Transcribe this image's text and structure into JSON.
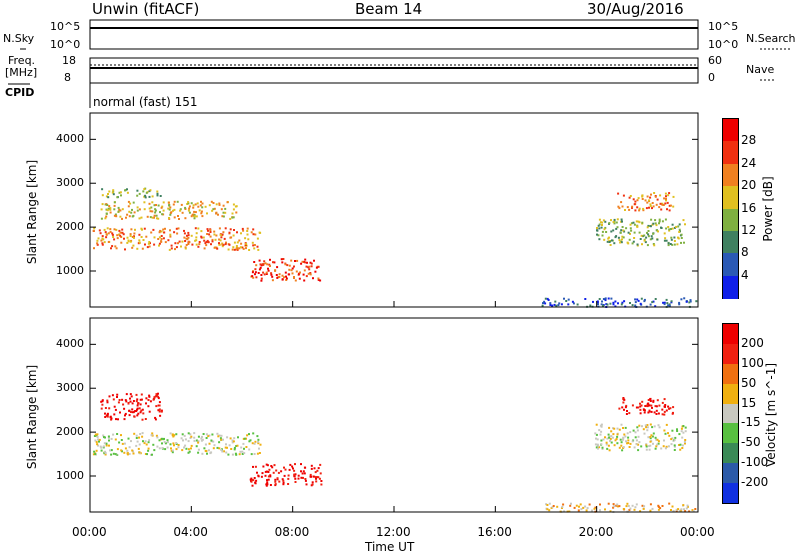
{
  "header": {
    "radar": "Unwin (fitACF)",
    "beam": "Beam 14",
    "date": "30/Aug/2016"
  },
  "top_panels": {
    "nsky_label": "N.Sky",
    "nsky_ticks": [
      "10^5",
      "10^0"
    ],
    "nsearch_label": "N.Search",
    "nsearch_ticks": [
      "10^5",
      "10^0"
    ],
    "freq_label": "Freq.",
    "freq_unit": "[MHz]",
    "freq_ticks": [
      "18",
      "8"
    ],
    "nave_label": "Nave",
    "nave_ticks": [
      "60",
      "0"
    ],
    "cpid_label": "CPID",
    "cpid_value": "normal (fast) 151"
  },
  "chart_data": {
    "type": "heatmap",
    "xlabel": "Time UT",
    "x_ticks": [
      "00:00",
      "04:00",
      "08:00",
      "12:00",
      "16:00",
      "20:00",
      "00:00"
    ],
    "xlim_hours": [
      0,
      24
    ],
    "ylabel": "Slant Range [km]",
    "ylim_km": [
      180,
      4600
    ],
    "y_ticks": [
      "1000",
      "2000",
      "3000",
      "4000"
    ],
    "panels": [
      {
        "name": "power",
        "colorbar_label": "Power [dB]",
        "colorbar_ticks": [
          "4",
          "8",
          "12",
          "16",
          "20",
          "24",
          "28"
        ],
        "colors": [
          "#0f1fe8",
          "#2a59b5",
          "#3f8060",
          "#7fb040",
          "#e0c020",
          "#f08020",
          "#f03010",
          "#ee0000"
        ],
        "regions": [
          {
            "t": [
              0.1,
              6.7
            ],
            "r": [
              1500,
              2000
            ],
            "level": 5
          },
          {
            "t": [
              0.4,
              5.8
            ],
            "r": [
              2200,
              2600
            ],
            "level": 4
          },
          {
            "t": [
              0.4,
              2.8
            ],
            "r": [
              2700,
              2900
            ],
            "level": 3
          },
          {
            "t": [
              6.3,
              9.1
            ],
            "r": [
              800,
              1300
            ],
            "level": 6
          },
          {
            "t": [
              19.9,
              23.5
            ],
            "r": [
              1600,
              2200
            ],
            "level": 3
          },
          {
            "t": [
              20.8,
              23.0
            ],
            "r": [
              2400,
              2800
            ],
            "level": 5
          },
          {
            "t": [
              17.8,
              23.9
            ],
            "r": [
              200,
              400
            ],
            "level": 1
          }
        ]
      },
      {
        "name": "velocity",
        "colorbar_label": "Velocity [m s^-1]",
        "colorbar_ticks": [
          "200",
          "100",
          "50",
          "15",
          "-15",
          "-50",
          "-100",
          "-200"
        ],
        "colors": [
          "#1030e0",
          "#2b5aa8",
          "#3a8a56",
          "#58c040",
          "#c8c8c0",
          "#f0b010",
          "#f07010",
          "#f02010",
          "#ee0000"
        ],
        "regions": [
          {
            "t": [
              0.1,
              6.7
            ],
            "r": [
              1500,
              2000
            ],
            "level": 4
          },
          {
            "t": [
              0.4,
              2.8
            ],
            "r": [
              2300,
              2900
            ],
            "level": 8
          },
          {
            "t": [
              6.3,
              9.1
            ],
            "r": [
              800,
              1300
            ],
            "level": 8
          },
          {
            "t": [
              19.9,
              23.5
            ],
            "r": [
              1600,
              2200
            ],
            "level": 4
          },
          {
            "t": [
              20.8,
              23.0
            ],
            "r": [
              2400,
              2800
            ],
            "level": 8
          },
          {
            "t": [
              17.8,
              23.9
            ],
            "r": [
              200,
              400
            ],
            "level": 5
          }
        ]
      }
    ]
  }
}
